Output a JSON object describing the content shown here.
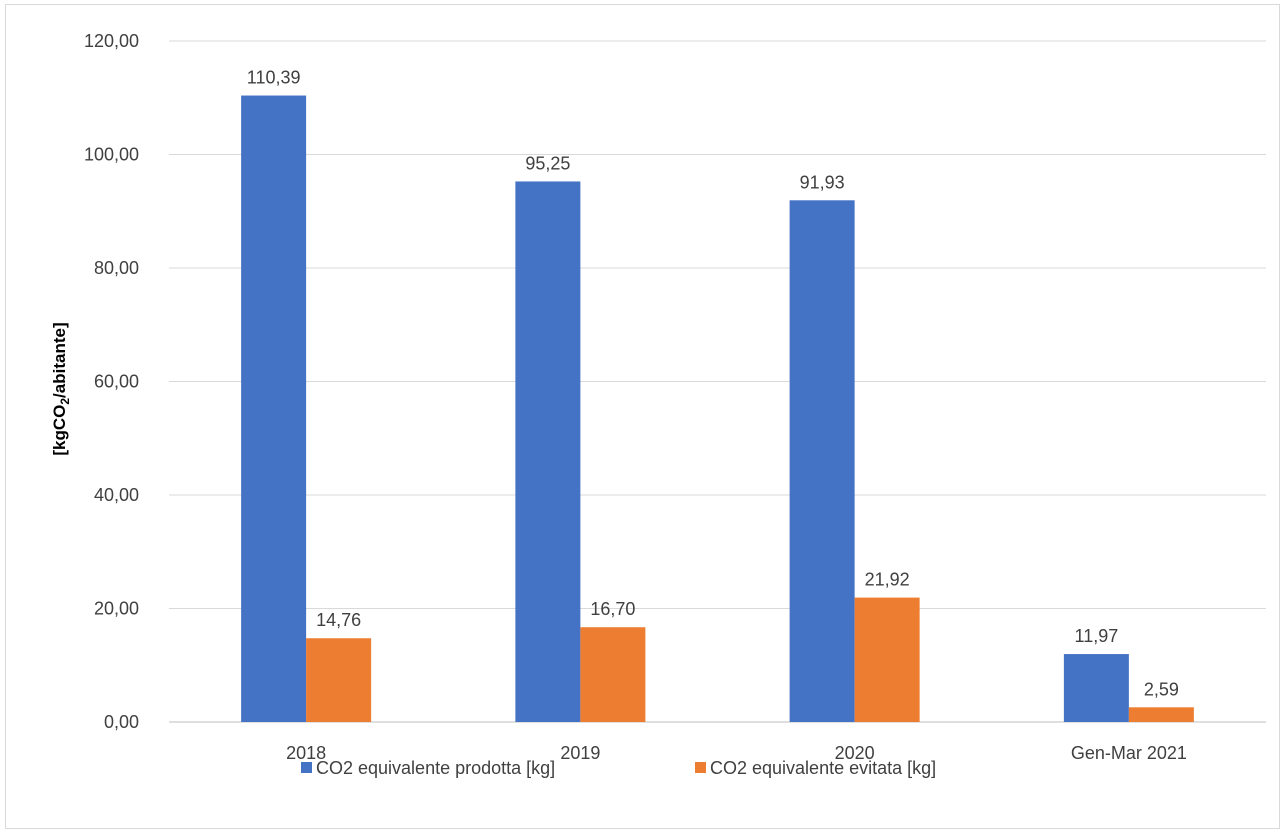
{
  "chart_data": {
    "type": "bar",
    "ylabel": {
      "prefix": "[kgCO",
      "subscript": "2",
      "suffix": "/abitante]"
    },
    "ylim": [
      0,
      120
    ],
    "ytick_labels": [
      "0,00",
      "20,00",
      "40,00",
      "60,00",
      "80,00",
      "100,00",
      "120,00"
    ],
    "yticks": [
      0,
      20,
      40,
      60,
      80,
      100,
      120
    ],
    "categories": [
      "2018",
      "2019",
      "2020",
      "Gen-Mar 2021"
    ],
    "series": [
      {
        "name": "CO2 equivalente prodotta [kg]",
        "color": "#4472C4",
        "values": [
          110.39,
          95.25,
          91.93,
          11.97
        ],
        "labels": [
          "110,39",
          "95,25",
          "91,93",
          "11,97"
        ]
      },
      {
        "name": "CO2 equivalente evitata [kg]",
        "color": "#ED7D31",
        "values": [
          14.76,
          16.7,
          21.92,
          2.59
        ],
        "labels": [
          "14,76",
          "16,70",
          "21,92",
          "2,59"
        ]
      }
    ],
    "grid": true,
    "legend_position": "bottom"
  }
}
